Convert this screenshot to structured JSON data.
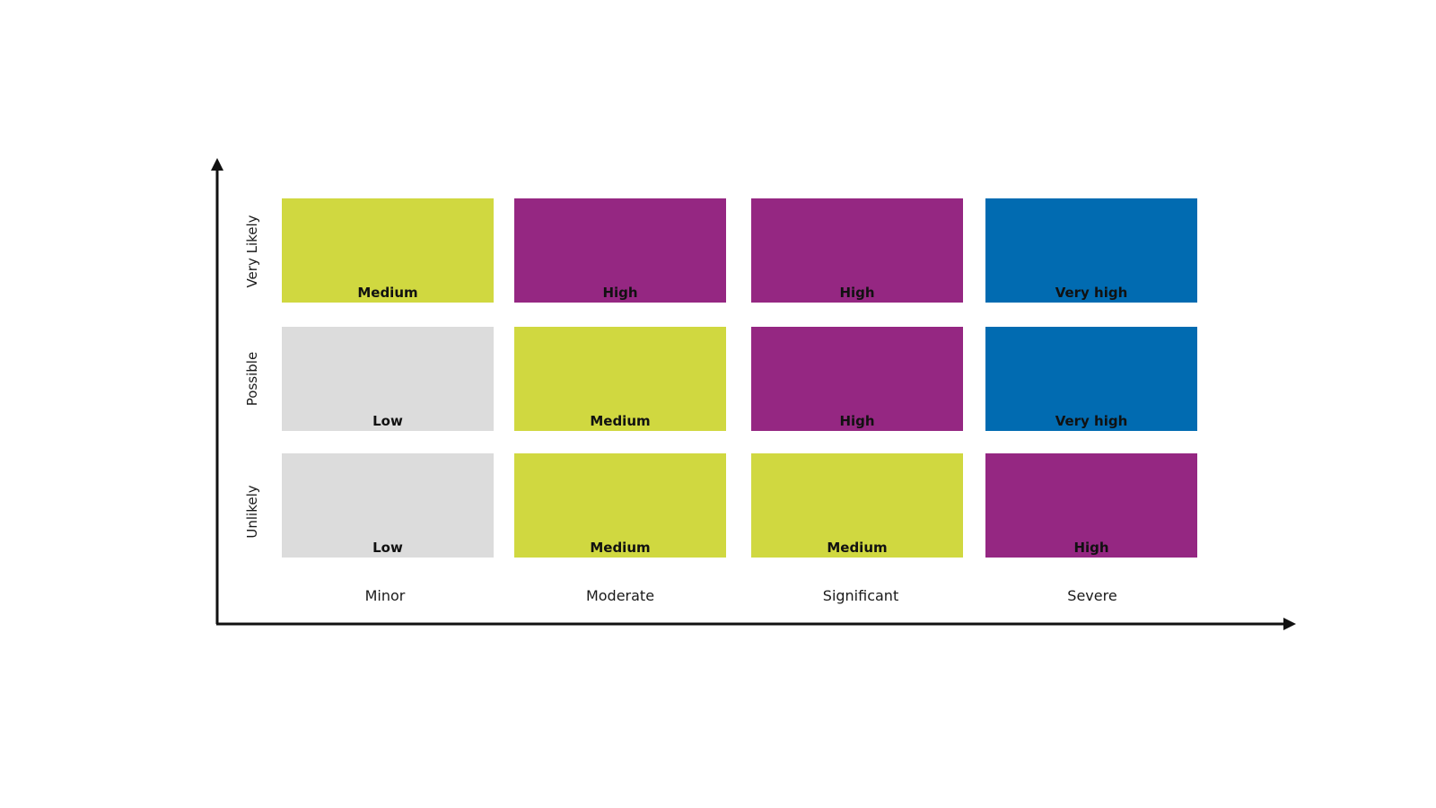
{
  "colors": {
    "Low": "#dcdcdc",
    "Medium": "#d0d840",
    "High": "#952782",
    "Very high": "#016bb1",
    "axis": "#111111"
  },
  "rows": [
    {
      "label": "Very Likely",
      "cells": [
        "Medium",
        "High",
        "High",
        "Very high"
      ]
    },
    {
      "label": "Possible",
      "cells": [
        "Low",
        "Medium",
        "High",
        "Very high"
      ]
    },
    {
      "label": "Unlikely",
      "cells": [
        "Low",
        "Medium",
        "Medium",
        "High"
      ]
    }
  ],
  "columns": [
    "Minor",
    "Moderate",
    "Significant",
    "Severe"
  ]
}
